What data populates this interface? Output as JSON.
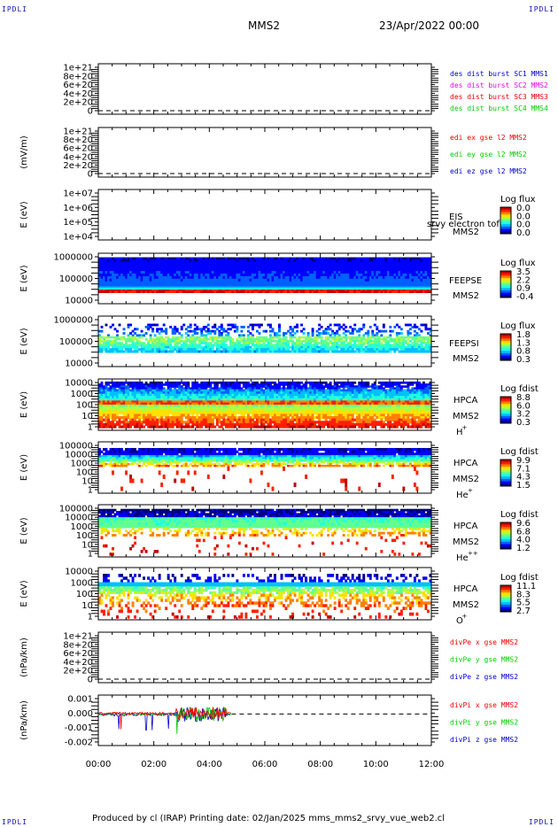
{
  "header": {
    "corner_left_top": "IPDLI",
    "corner_right_top": "IPDLI",
    "corner_left_bottom": "IPDLI",
    "corner_right_bottom": "IPDLI",
    "title": "MMS2",
    "date": "23/Apr/2022 00:00"
  },
  "footer": {
    "text": "Produced by cl (IRAP)   Printing date: 02/Jan/2025   mms_mms2_srvy_vue_web2.cl"
  },
  "colors": {
    "red": "#ee0000",
    "magenta": "#ee00ee",
    "green": "#00cc00",
    "blue": "#0000cc"
  },
  "chart_data": [
    {
      "type": "line",
      "panel": "des dist burst",
      "ylabel": "",
      "y_ticks": [
        "1e+21",
        "8e+20",
        "6e+20",
        "4e+20",
        "2e+20",
        "0"
      ],
      "legend": [
        {
          "name": "des dist burst SC1 MMS1",
          "color": "#0000cc"
        },
        {
          "name": "des dist burst SC2 MMS2",
          "color": "#ee00ee"
        },
        {
          "name": "des dist burst SC3 MMS3",
          "color": "#ee0000"
        },
        {
          "name": "des dist burst SC4 MMS4",
          "color": "#00cc00"
        }
      ],
      "series": []
    },
    {
      "type": "line",
      "panel": "edi e gse l2",
      "ylabel": "(mV/m)",
      "y_ticks": [
        "1e+21",
        "8e+20",
        "6e+20",
        "4e+20",
        "2e+20",
        "0"
      ],
      "legend": [
        {
          "name": "edi ex gse l2 MMS2",
          "color": "#ee0000"
        },
        {
          "name": "edi ey gse l2 MMS2",
          "color": "#00cc00"
        },
        {
          "name": "edi ez gse l2 MMS2",
          "color": "#0000cc"
        }
      ],
      "series": []
    },
    {
      "type": "heatmap",
      "panel": "EIS",
      "ylabel": "E (eV)",
      "y_ticks": [
        "1e+07",
        "1e+06",
        "1e+05",
        "1e+04"
      ],
      "y_scale": "log",
      "labels": [
        "EIS",
        "MMS2"
      ],
      "overlay_text": "srvy electron tof",
      "colorbar": {
        "title": "Log flux",
        "ticks": [
          "0.0",
          "0.0",
          "0.0",
          "0.0"
        ]
      }
    },
    {
      "type": "heatmap",
      "panel": "FEEPSE",
      "ylabel": "E (eV)",
      "y_ticks": [
        "1000000",
        "100000",
        "10000"
      ],
      "y_scale": "log",
      "labels": [
        "FEEPSE",
        "MMS2"
      ],
      "colorbar": {
        "title": "Log flux",
        "ticks": [
          "3.5",
          "2.2",
          "0.9",
          "-0.4"
        ]
      }
    },
    {
      "type": "heatmap",
      "panel": "FEEPSI",
      "ylabel": "E (eV)",
      "y_ticks": [
        "1000000",
        "100000",
        "10000"
      ],
      "y_scale": "log",
      "labels": [
        "FEEPSI",
        "MMS2"
      ],
      "colorbar": {
        "title": "Log flux",
        "ticks": [
          "1.8",
          "1.3",
          "0.8",
          "0.3"
        ]
      }
    },
    {
      "type": "heatmap",
      "panel": "HPCA H+",
      "ylabel": "E (eV)",
      "y_ticks": [
        "10000",
        "1000",
        "100",
        "10",
        "1"
      ],
      "y_scale": "log",
      "labels": [
        "HPCA",
        "MMS2",
        "H",
        "+"
      ],
      "colorbar": {
        "title": "Log fdist",
        "ticks": [
          "8.8",
          "6.0",
          "3.2",
          "0.3"
        ]
      }
    },
    {
      "type": "heatmap",
      "panel": "HPCA He+",
      "ylabel": "E (eV)",
      "y_ticks": [
        "100000",
        "10000",
        "1000",
        "100",
        "10",
        "1"
      ],
      "y_scale": "log",
      "labels": [
        "HPCA",
        "MMS2",
        "He",
        "+"
      ],
      "colorbar": {
        "title": "Log fdist",
        "ticks": [
          "9.9",
          "7.1",
          "4.3",
          "1.5"
        ]
      }
    },
    {
      "type": "heatmap",
      "panel": "HPCA He++",
      "ylabel": "E (eV)",
      "y_ticks": [
        "100000",
        "10000",
        "1000",
        "100",
        "10",
        "1"
      ],
      "y_scale": "log",
      "labels": [
        "HPCA",
        "MMS2",
        "He",
        "++"
      ],
      "colorbar": {
        "title": "Log fdist",
        "ticks": [
          "9.6",
          "6.8",
          "4.0",
          "1.2"
        ]
      }
    },
    {
      "type": "heatmap",
      "panel": "HPCA O+",
      "ylabel": "E (eV)",
      "y_ticks": [
        "10000",
        "1000",
        "100",
        "10",
        "1"
      ],
      "y_scale": "log",
      "labels": [
        "HPCA",
        "MMS2",
        "O",
        "+"
      ],
      "colorbar": {
        "title": "Log fdist",
        "ticks": [
          "11.1",
          "8.3",
          "5.5",
          "2.7"
        ]
      }
    },
    {
      "type": "line",
      "panel": "divPe",
      "ylabel": "(nPa/km)",
      "y_ticks": [
        "1e+21",
        "8e+20",
        "6e+20",
        "4e+20",
        "2e+20",
        "0"
      ],
      "legend": [
        {
          "name": "divPe x gse MMS2",
          "color": "#ee0000"
        },
        {
          "name": "divPe y gse MMS2",
          "color": "#00cc00"
        },
        {
          "name": "divPe z gse MMS2",
          "color": "#0000cc"
        }
      ],
      "series": []
    },
    {
      "type": "line",
      "panel": "divPi",
      "ylabel": "(nPa/km)",
      "y_ticks": [
        "0.001",
        "0.000",
        "-0.001",
        "-0.002"
      ],
      "ylim": [
        -0.0025,
        0.0015
      ],
      "legend": [
        {
          "name": "divPi x gse MMS2",
          "color": "#ee0000"
        },
        {
          "name": "divPi y gse MMS2",
          "color": "#00cc00"
        },
        {
          "name": "divPi z gse MMS2",
          "color": "#0000cc"
        }
      ],
      "data_end_hour": 4.8
    }
  ],
  "x_axis": {
    "ticks": [
      "00:00",
      "02:00",
      "04:00",
      "06:00",
      "08:00",
      "10:00",
      "12:00"
    ],
    "range_hours": [
      0,
      12
    ]
  }
}
